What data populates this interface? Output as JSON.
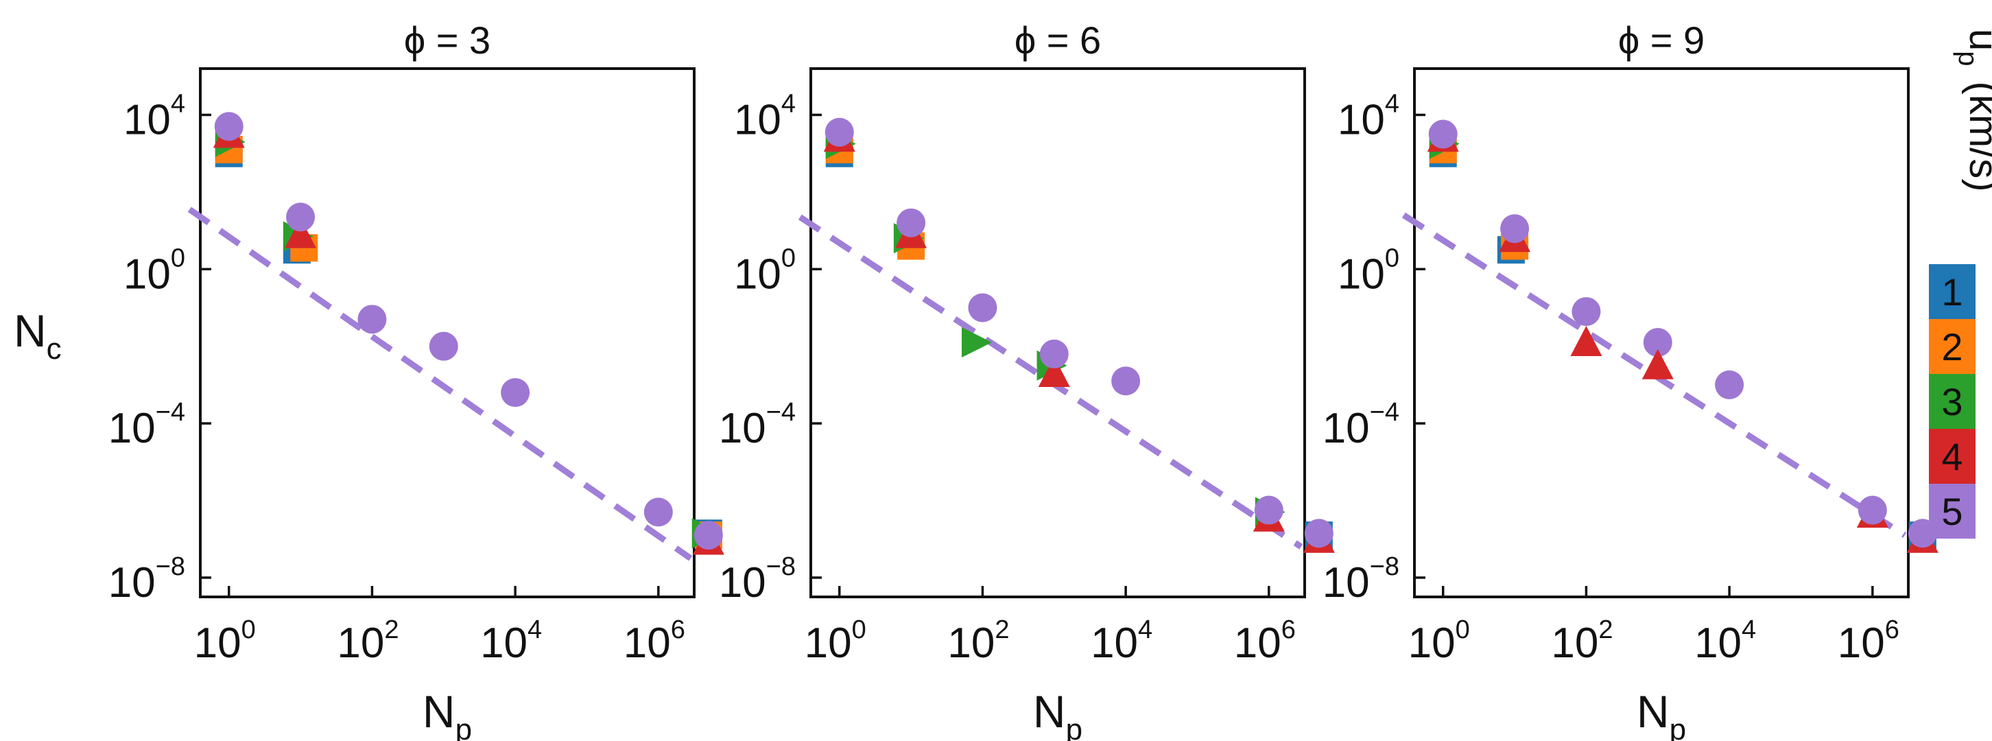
{
  "figure": {
    "colorbar": {
      "label_main": "u",
      "label_sub": "p",
      "label_unit": "(km/s)",
      "entries": [
        {
          "label": "1",
          "color": "#1f77b4"
        },
        {
          "label": "2",
          "color": "#ff7f0e"
        },
        {
          "label": "3",
          "color": "#2ca02c"
        },
        {
          "label": "4",
          "color": "#d62728"
        },
        {
          "label": "5",
          "color": "#9e77d2"
        }
      ]
    },
    "fit_color": "#a07fd8"
  },
  "chart_data": [
    {
      "type": "scatter",
      "title": "ϕ = 3",
      "xlabel": "N",
      "xlabel_sub": "p",
      "ylabel": "N",
      "ylabel_sub": "c",
      "xscale": "log",
      "yscale": "log",
      "xlim_log10": [
        -0.4,
        6.5
      ],
      "ylim_log10": [
        -8.5,
        5.2
      ],
      "xticks": [
        {
          "base": "10",
          "exp": "0",
          "log": 0
        },
        {
          "base": "10",
          "exp": "2",
          "log": 2
        },
        {
          "base": "10",
          "exp": "4",
          "log": 4
        },
        {
          "base": "10",
          "exp": "6",
          "log": 6
        }
      ],
      "yticks": [
        {
          "base": "10",
          "exp": "4",
          "log": 4
        },
        {
          "base": "10",
          "exp": "0",
          "log": 0
        },
        {
          "base": "10",
          "exp": "−4",
          "log": -4
        },
        {
          "base": "10",
          "exp": "−8",
          "log": -8
        }
      ],
      "fit_line": {
        "x_log10": [
          -0.55,
          6.45
        ],
        "y_log10": [
          1.55,
          -7.5
        ]
      },
      "points": [
        {
          "series": "1",
          "marker": "square",
          "x_log10": 0,
          "y_log10": 3.0
        },
        {
          "series": "2",
          "marker": "square",
          "x_log10": 0,
          "y_log10": 3.1
        },
        {
          "series": "3",
          "marker": "triangle-right",
          "x_log10": 0,
          "y_log10": 3.3
        },
        {
          "series": "4",
          "marker": "triangle-up",
          "x_log10": 0,
          "y_log10": 3.5
        },
        {
          "series": "5",
          "marker": "circle",
          "x_log10": 0,
          "y_log10": 3.7
        },
        {
          "series": "1",
          "marker": "square",
          "x_log10": 0.95,
          "y_log10": 0.5
        },
        {
          "series": "2",
          "marker": "square",
          "x_log10": 1.05,
          "y_log10": 0.55
        },
        {
          "series": "3",
          "marker": "triangle-right",
          "x_log10": 0.95,
          "y_log10": 0.85
        },
        {
          "series": "4",
          "marker": "triangle-up",
          "x_log10": 1.0,
          "y_log10": 0.9
        },
        {
          "series": "5",
          "marker": "circle",
          "x_log10": 1.0,
          "y_log10": 1.35
        },
        {
          "series": "5",
          "marker": "circle",
          "x_log10": 2.0,
          "y_log10": -1.3
        },
        {
          "series": "5",
          "marker": "circle",
          "x_log10": 3.0,
          "y_log10": -2.0
        },
        {
          "series": "5",
          "marker": "circle",
          "x_log10": 4.0,
          "y_log10": -3.2
        },
        {
          "series": "5",
          "marker": "circle",
          "x_log10": 6.0,
          "y_log10": -6.3
        },
        {
          "series": "1",
          "marker": "square",
          "x_log10": 6.7,
          "y_log10": -6.85
        },
        {
          "series": "2",
          "marker": "square",
          "x_log10": 6.7,
          "y_log10": -6.9
        },
        {
          "series": "3",
          "marker": "triangle-right",
          "x_log10": 6.66,
          "y_log10": -6.85
        },
        {
          "series": "4",
          "marker": "triangle-up",
          "x_log10": 6.7,
          "y_log10": -7.05
        },
        {
          "series": "5",
          "marker": "circle",
          "x_log10": 6.7,
          "y_log10": -6.9
        }
      ]
    },
    {
      "type": "scatter",
      "title": "ϕ = 6",
      "xlabel": "N",
      "xlabel_sub": "p",
      "ylabel": "N",
      "ylabel_sub": "c",
      "xscale": "log",
      "yscale": "log",
      "xlim_log10": [
        -0.4,
        6.5
      ],
      "ylim_log10": [
        -8.5,
        5.2
      ],
      "xticks": [
        {
          "base": "10",
          "exp": "0",
          "log": 0
        },
        {
          "base": "10",
          "exp": "2",
          "log": 2
        },
        {
          "base": "10",
          "exp": "4",
          "log": 4
        },
        {
          "base": "10",
          "exp": "6",
          "log": 6
        }
      ],
      "yticks": [
        {
          "base": "10",
          "exp": "4",
          "log": 4
        },
        {
          "base": "10",
          "exp": "0",
          "log": 0
        },
        {
          "base": "10",
          "exp": "−4",
          "log": -4
        },
        {
          "base": "10",
          "exp": "−8",
          "log": -8
        }
      ],
      "fit_line": {
        "x_log10": [
          -0.55,
          6.45
        ],
        "y_log10": [
          1.35,
          -7.2
        ]
      },
      "points": [
        {
          "series": "1",
          "marker": "square",
          "x_log10": 0,
          "y_log10": 3.0
        },
        {
          "series": "2",
          "marker": "square",
          "x_log10": 0,
          "y_log10": 3.1
        },
        {
          "series": "3",
          "marker": "triangle-right",
          "x_log10": 0,
          "y_log10": 3.25
        },
        {
          "series": "4",
          "marker": "triangle-up",
          "x_log10": 0,
          "y_log10": 3.4
        },
        {
          "series": "5",
          "marker": "circle",
          "x_log10": 0,
          "y_log10": 3.55
        },
        {
          "series": "2",
          "marker": "square",
          "x_log10": 1.0,
          "y_log10": 0.6
        },
        {
          "series": "3",
          "marker": "triangle-right",
          "x_log10": 0.95,
          "y_log10": 0.8
        },
        {
          "series": "4",
          "marker": "triangle-up",
          "x_log10": 1.0,
          "y_log10": 0.9
        },
        {
          "series": "5",
          "marker": "circle",
          "x_log10": 1.0,
          "y_log10": 1.2
        },
        {
          "series": "5",
          "marker": "circle",
          "x_log10": 2.0,
          "y_log10": -1.0
        },
        {
          "series": "3",
          "marker": "triangle-right",
          "x_log10": 1.9,
          "y_log10": -1.9
        },
        {
          "series": "3",
          "marker": "triangle-right",
          "x_log10": 2.95,
          "y_log10": -2.5
        },
        {
          "series": "4",
          "marker": "triangle-up",
          "x_log10": 3.0,
          "y_log10": -2.7
        },
        {
          "series": "5",
          "marker": "circle",
          "x_log10": 3.0,
          "y_log10": -2.2
        },
        {
          "series": "5",
          "marker": "circle",
          "x_log10": 4.0,
          "y_log10": -2.9
        },
        {
          "series": "3",
          "marker": "triangle-right",
          "x_log10": 6.0,
          "y_log10": -6.3
        },
        {
          "series": "4",
          "marker": "triangle-up",
          "x_log10": 6.0,
          "y_log10": -6.45
        },
        {
          "series": "5",
          "marker": "circle",
          "x_log10": 6.0,
          "y_log10": -6.25
        },
        {
          "series": "1",
          "marker": "square",
          "x_log10": 6.7,
          "y_log10": -6.9
        },
        {
          "series": "4",
          "marker": "triangle-up",
          "x_log10": 6.7,
          "y_log10": -7.0
        },
        {
          "series": "5",
          "marker": "circle",
          "x_log10": 6.7,
          "y_log10": -6.85
        }
      ]
    },
    {
      "type": "scatter",
      "title": "ϕ = 9",
      "xlabel": "N",
      "xlabel_sub": "p",
      "ylabel": "N",
      "ylabel_sub": "c",
      "xscale": "log",
      "yscale": "log",
      "xlim_log10": [
        -0.4,
        6.5
      ],
      "ylim_log10": [
        -8.5,
        5.2
      ],
      "xticks": [
        {
          "base": "10",
          "exp": "0",
          "log": 0
        },
        {
          "base": "10",
          "exp": "2",
          "log": 2
        },
        {
          "base": "10",
          "exp": "4",
          "log": 4
        },
        {
          "base": "10",
          "exp": "6",
          "log": 6
        }
      ],
      "yticks": [
        {
          "base": "10",
          "exp": "4",
          "log": 4
        },
        {
          "base": "10",
          "exp": "0",
          "log": 0
        },
        {
          "base": "10",
          "exp": "−4",
          "log": -4
        },
        {
          "base": "10",
          "exp": "−8",
          "log": -8
        }
      ],
      "fit_line": {
        "x_log10": [
          -0.55,
          6.45
        ],
        "y_log10": [
          1.4,
          -6.9
        ]
      },
      "points": [
        {
          "series": "1",
          "marker": "square",
          "x_log10": 0,
          "y_log10": 3.0
        },
        {
          "series": "2",
          "marker": "square",
          "x_log10": 0,
          "y_log10": 3.1
        },
        {
          "series": "3",
          "marker": "triangle-right",
          "x_log10": 0,
          "y_log10": 3.25
        },
        {
          "series": "4",
          "marker": "triangle-up",
          "x_log10": 0,
          "y_log10": 3.4
        },
        {
          "series": "5",
          "marker": "circle",
          "x_log10": 0,
          "y_log10": 3.5
        },
        {
          "series": "1",
          "marker": "square",
          "x_log10": 0.95,
          "y_log10": 0.5
        },
        {
          "series": "2",
          "marker": "square",
          "x_log10": 1.0,
          "y_log10": 0.6
        },
        {
          "series": "4",
          "marker": "triangle-up",
          "x_log10": 1.0,
          "y_log10": 0.8
        },
        {
          "series": "5",
          "marker": "circle",
          "x_log10": 1.0,
          "y_log10": 1.05
        },
        {
          "series": "5",
          "marker": "circle",
          "x_log10": 2.0,
          "y_log10": -1.1
        },
        {
          "series": "4",
          "marker": "triangle-up",
          "x_log10": 2.0,
          "y_log10": -1.9
        },
        {
          "series": "5",
          "marker": "circle",
          "x_log10": 3.0,
          "y_log10": -1.9
        },
        {
          "series": "4",
          "marker": "triangle-up",
          "x_log10": 3.0,
          "y_log10": -2.5
        },
        {
          "series": "5",
          "marker": "circle",
          "x_log10": 4.0,
          "y_log10": -3.0
        },
        {
          "series": "4",
          "marker": "triangle-up",
          "x_log10": 6.0,
          "y_log10": -6.35
        },
        {
          "series": "5",
          "marker": "circle",
          "x_log10": 6.0,
          "y_log10": -6.25
        },
        {
          "series": "1",
          "marker": "square",
          "x_log10": 6.7,
          "y_log10": -6.9
        },
        {
          "series": "4",
          "marker": "triangle-up",
          "x_log10": 6.7,
          "y_log10": -7.0
        },
        {
          "series": "5",
          "marker": "circle",
          "x_log10": 6.7,
          "y_log10": -6.85
        }
      ]
    }
  ]
}
